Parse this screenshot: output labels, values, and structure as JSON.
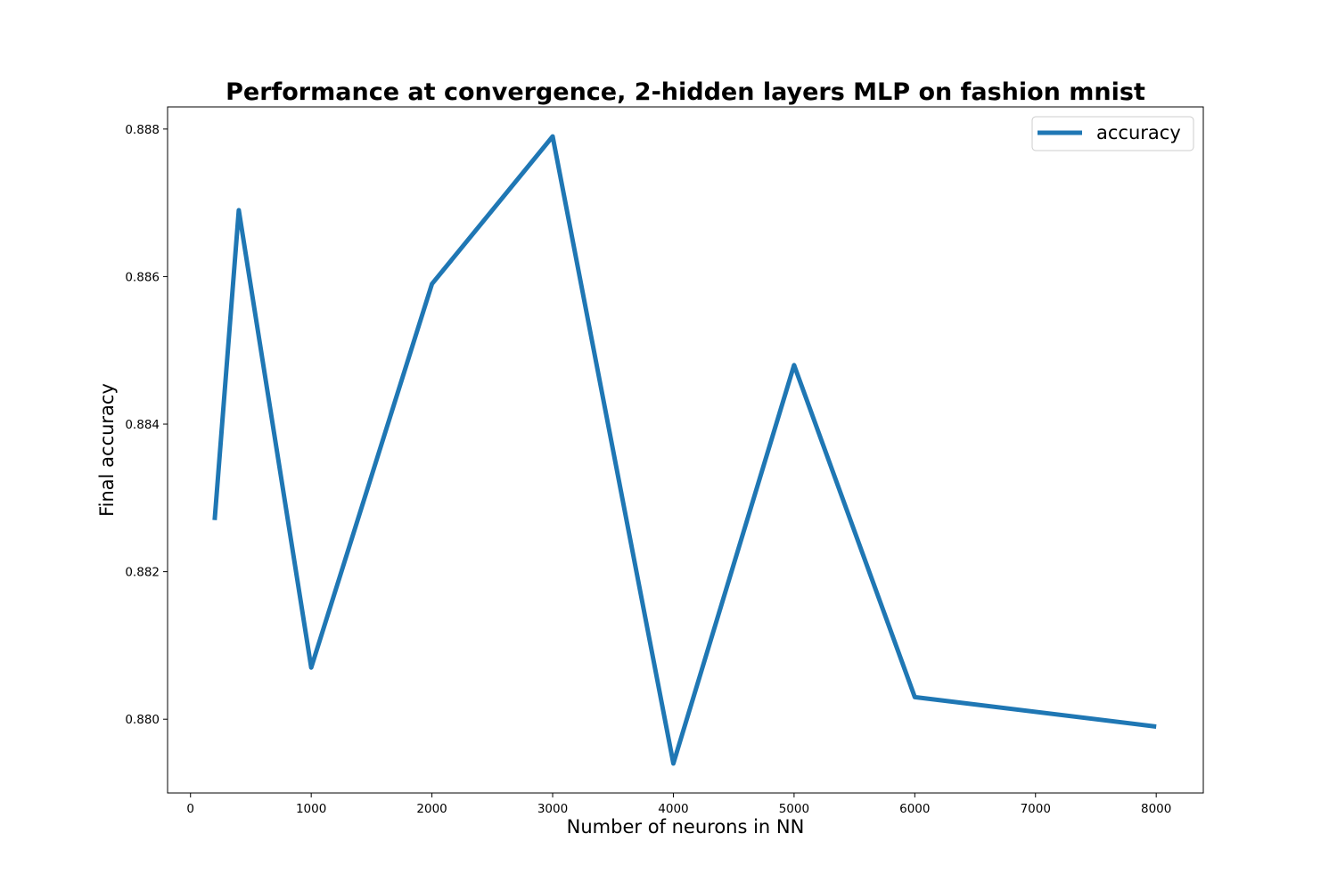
{
  "chart_data": {
    "type": "line",
    "title": "Performance at convergence, 2-hidden layers MLP on fashion mnist",
    "xlabel": "Number of neurons in NN",
    "ylabel": "Final accuracy",
    "xlim": [
      -190,
      8390
    ],
    "ylim": [
      0.879,
      0.8883
    ],
    "xticks": [
      0,
      1000,
      2000,
      3000,
      4000,
      5000,
      6000,
      7000,
      8000
    ],
    "xtick_labels": [
      "0",
      "1000",
      "2000",
      "3000",
      "4000",
      "5000",
      "6000",
      "7000",
      "8000"
    ],
    "yticks": [
      0.88,
      0.882,
      0.884,
      0.886,
      0.888
    ],
    "ytick_labels": [
      "0.880",
      "0.882",
      "0.884",
      "0.886",
      "0.888"
    ],
    "grid": false,
    "legend_placement": "top-right",
    "series": [
      {
        "name": "accuracy",
        "color": "#1f77b4",
        "x": [
          200,
          400,
          1000,
          2000,
          3000,
          4000,
          5000,
          6000,
          8000
        ],
        "y": [
          0.8827,
          0.8869,
          0.8807,
          0.8859,
          0.8879,
          0.8794,
          0.8848,
          0.8803,
          0.8799
        ]
      }
    ]
  }
}
